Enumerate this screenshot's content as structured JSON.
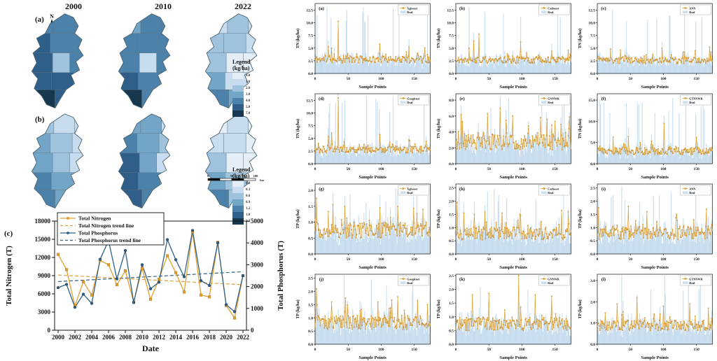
{
  "colors": {
    "orange": "#DFA032",
    "orange_edge": "#B97F1E",
    "blue": "#2E6186",
    "real_fill": "#CCE0F0",
    "real_edge": "#B5D2E8",
    "map_border": "#5c7384",
    "axis": "#111111"
  },
  "labels": {
    "panel_a": "(a)",
    "panel_b": "(b)",
    "panel_c": "(c)"
  },
  "maps": {
    "years": [
      "2000",
      "2010",
      "2022"
    ],
    "north_label": "N",
    "legend_title": "Legend",
    "legend_unit": "(kg/ha)",
    "ramp": [
      "#e4eef7",
      "#c7dcee",
      "#a0c3dd",
      "#73a5c7",
      "#4c82aa",
      "#2f5f88",
      "#17374f"
    ],
    "legend_a_values": [
      "0.0",
      "1.0",
      "2.0",
      "3.0",
      "4.0",
      "5.0",
      "7.0"
    ],
    "legend_b_values": [
      "0.0",
      "0.3",
      "0.6",
      "0.9",
      "1.2",
      "1.8",
      "2.3"
    ],
    "scalebar": {
      "ticks": [
        "0",
        "50",
        "100"
      ],
      "unit": "km"
    },
    "region_indices": {
      "a2000": [
        4,
        4,
        4,
        5,
        4,
        4,
        5,
        2,
        4,
        5,
        5,
        4,
        6,
        5,
        4
      ],
      "a2010": [
        3,
        4,
        4,
        4,
        4,
        4,
        4,
        1,
        4,
        5,
        4,
        3,
        6,
        4,
        3
      ],
      "a2022": [
        1,
        2,
        1,
        2,
        2,
        1,
        2,
        0,
        0,
        3,
        1,
        0,
        4,
        3,
        1
      ],
      "b2000": [
        2,
        1,
        1,
        3,
        2,
        1,
        3,
        2,
        1,
        4,
        3,
        2,
        4,
        3,
        2
      ],
      "b2010": [
        3,
        3,
        1,
        4,
        3,
        2,
        5,
        3,
        1,
        5,
        4,
        2,
        5,
        4,
        2
      ],
      "b2022": [
        0,
        1,
        0,
        1,
        1,
        0,
        2,
        0,
        0,
        3,
        2,
        1,
        4,
        2,
        1
      ]
    }
  },
  "chart_data": [
    {
      "id": "trend_chart",
      "type": "line",
      "label": "(c)",
      "xlabel": "Date",
      "ylabel_left": "Total Nitrogen (T)",
      "ylabel_right": "Total Phosphorus (T)",
      "ylim_left": [
        0,
        18000
      ],
      "yticks_left": [
        0,
        3000,
        6000,
        9000,
        12000,
        15000,
        18000
      ],
      "ylim_right": [
        0,
        5000
      ],
      "yticks_right": [
        0,
        1000,
        2000,
        3000,
        4000,
        5000
      ],
      "x": [
        2000,
        2001,
        2002,
        2003,
        2004,
        2005,
        2006,
        2007,
        2008,
        2009,
        2010,
        2011,
        2012,
        2013,
        2014,
        2015,
        2016,
        2017,
        2018,
        2019,
        2020,
        2021,
        2022
      ],
      "xticks": [
        2000,
        2002,
        2004,
        2006,
        2008,
        2010,
        2012,
        2014,
        2016,
        2018,
        2020,
        2022
      ],
      "legend_position": "upper left",
      "grid": false,
      "series": [
        {
          "name": "Total Nitrogen",
          "axis": "left",
          "style": "solid",
          "marker": "square",
          "values": [
            12500,
            10000,
            4000,
            8000,
            5800,
            11500,
            10800,
            7500,
            9800,
            4600,
            10200,
            5100,
            8400,
            12300,
            9500,
            6300,
            16200,
            5800,
            5500,
            14500,
            4100,
            2000,
            9000
          ]
        },
        {
          "name": "Total Nitrogen trend line",
          "axis": "left",
          "style": "dashed",
          "trend": [
            9100,
            7500
          ]
        },
        {
          "name": "Total Phosphorus",
          "axis": "right",
          "style": "solid",
          "marker": "circle",
          "values": [
            1950,
            2100,
            1050,
            1650,
            1230,
            3250,
            4100,
            2350,
            3650,
            1270,
            3000,
            1900,
            2200,
            4150,
            3230,
            2450,
            4570,
            2270,
            2050,
            4000,
            1170,
            850,
            2500
          ]
        },
        {
          "name": "Total Phosphorus trend line",
          "axis": "right",
          "style": "dashed",
          "trend": [
            2230,
            2680
          ]
        }
      ]
    },
    {
      "id": "model_panels",
      "type": "line",
      "note": "12 model-vs-real comparison panels; orange = model prediction line with markers, light blue bars = Real observed values; per-point values estimated via stated baseline/amplitude/spikes",
      "n_points": 175,
      "xlabel": "Sample Points",
      "xticks": [
        0,
        50,
        100,
        150
      ],
      "real_label": "Real",
      "panels": [
        {
          "label": "(a)",
          "model": "Xgboost",
          "ylabel": "TN (kg/ha)",
          "ymax": 13.8,
          "ytick_vals": [
            0,
            2.5,
            5,
            7.5,
            10,
            12.5
          ],
          "ytick_labels": [
            "0.0",
            "2.5",
            "5.0",
            "7.5",
            "10.0",
            "12.5"
          ],
          "base": 2.7,
          "amp": 1.4,
          "seed": 11,
          "spikes": [
            [
              20,
              5.3
            ],
            [
              25,
              5.0
            ],
            [
              35,
              10.3
            ],
            [
              98,
              5.8
            ],
            [
              142,
              5.2
            ],
            [
              166,
              5.0
            ]
          ]
        },
        {
          "label": "(b)",
          "model": "Catboost",
          "ylabel": "TN (kg/ha)",
          "ymax": 13.8,
          "ytick_vals": [
            0,
            2.5,
            5,
            7.5,
            10,
            12.5
          ],
          "ytick_labels": [
            "0.0",
            "2.5",
            "5.0",
            "7.5",
            "10.0",
            "12.5"
          ],
          "base": 2.6,
          "amp": 1.3,
          "seed": 22,
          "spikes": [
            [
              20,
              5.0
            ],
            [
              27,
              6.4
            ],
            [
              35,
              7.8
            ],
            [
              98,
              6.2
            ],
            [
              145,
              4.4
            ],
            [
              170,
              4.6
            ]
          ]
        },
        {
          "label": "(c)",
          "model": "ANN",
          "ylabel": "TN (kg/ha)",
          "ymax": 13.8,
          "ytick_vals": [
            0,
            2.5,
            5,
            7.5,
            10,
            12.5
          ],
          "ytick_labels": [
            "0.0",
            "2.5",
            "5.0",
            "7.5",
            "10.0",
            "12.5"
          ],
          "base": 2.5,
          "amp": 1.2,
          "seed": 33,
          "spikes": [
            [
              20,
              4.8
            ],
            [
              35,
              4.6
            ],
            [
              98,
              5.0
            ],
            [
              130,
              4.2
            ],
            [
              170,
              5.2
            ]
          ]
        },
        {
          "label": "(d)",
          "model": "Googlenet",
          "ylabel": "TN (kg/ha)",
          "ymax": 13.8,
          "ytick_vals": [
            0,
            2.5,
            5,
            7.5,
            10,
            12.5
          ],
          "ytick_labels": [
            "0.0",
            "2.5",
            "5.0",
            "7.5",
            "10.0",
            "12.5"
          ],
          "base": 2.7,
          "amp": 1.3,
          "seed": 44,
          "spikes": [
            [
              20,
              5.3
            ],
            [
              25,
              6.0
            ],
            [
              35,
              13.0
            ],
            [
              98,
              5.7
            ],
            [
              142,
              4.7
            ],
            [
              168,
              4.4
            ]
          ]
        },
        {
          "label": "(e)",
          "model": "GNNWR",
          "ylabel": "TN (kg/ha)",
          "ymax": 8.8,
          "ytick_vals": [
            0,
            2,
            4,
            6,
            8
          ],
          "ytick_labels": [
            "0.0",
            "2.0",
            "4.0",
            "6.0",
            "8.0"
          ],
          "base": 2.6,
          "amp": 1.9,
          "seed": 55,
          "spikes": [
            [
              8,
              6.2
            ],
            [
              48,
              6.3
            ],
            [
              67,
              7.0
            ],
            [
              86,
              6.0
            ],
            [
              128,
              5.8
            ],
            [
              138,
              5.6
            ],
            [
              172,
              5.9
            ]
          ]
        },
        {
          "label": "(f)",
          "model": "GTNNWR",
          "ylabel": "TN (kg/ha)",
          "ymax": 16.5,
          "ytick_vals": [
            0,
            5,
            10,
            15
          ],
          "ytick_labels": [
            "0.0",
            "5.0",
            "10.0",
            "15.0"
          ],
          "base": 2.9,
          "amp": 1.7,
          "seed": 66,
          "spikes": [
            [
              24,
              6.3
            ],
            [
              47,
              6.4
            ],
            [
              82,
              5.3
            ],
            [
              101,
              9.5
            ],
            [
              150,
              6.2
            ]
          ]
        },
        {
          "label": "(g)",
          "model": "Xgboost",
          "ylabel": "TP (kg/ha)",
          "ymax": 2.2,
          "ytick_vals": [
            0,
            0.5,
            1,
            1.5,
            2
          ],
          "ytick_labels": [
            "0.0",
            "0.5",
            "1.0",
            "1.5",
            "2.0"
          ],
          "base": 0.72,
          "amp": 0.5,
          "seed": 77,
          "spikes": [
            [
              2,
              1.75
            ],
            [
              27,
              1.55
            ],
            [
              45,
              1.5
            ],
            [
              98,
              1.45
            ],
            [
              125,
              1.5
            ],
            [
              163,
              1.4
            ]
          ]
        },
        {
          "label": "(h)",
          "model": "Catboost",
          "ylabel": "TP (kg/ha)",
          "ymax": 2.65,
          "ytick_vals": [
            0,
            0.5,
            1,
            1.5,
            2,
            2.5
          ],
          "ytick_labels": [
            "0.0",
            "0.5",
            "1.0",
            "1.5",
            "2.0",
            "2.5"
          ],
          "base": 0.75,
          "amp": 0.5,
          "seed": 88,
          "spikes": [
            [
              2,
              1.95
            ],
            [
              44,
              1.6
            ],
            [
              70,
              1.55
            ],
            [
              97,
              1.5
            ],
            [
              160,
              1.65
            ],
            [
              170,
              1.6
            ]
          ]
        },
        {
          "label": "(i)",
          "model": "ANN",
          "ylabel": "TP (kg/ha)",
          "ymax": 2.65,
          "ytick_vals": [
            0,
            0.5,
            1,
            1.5,
            2,
            2.5
          ],
          "ytick_labels": [
            "0.0",
            "0.5",
            "1.0",
            "1.5",
            "2.0",
            "2.5"
          ],
          "base": 0.78,
          "amp": 0.5,
          "seed": 99,
          "spikes": [
            [
              2,
              1.75
            ],
            [
              47,
              1.8
            ],
            [
              75,
              1.6
            ],
            [
              120,
              1.5
            ],
            [
              165,
              1.7
            ]
          ]
        },
        {
          "label": "(j)",
          "model": "Googlenet",
          "ylabel": "TP (kg/ha)",
          "ymax": 2.65,
          "ytick_vals": [
            0,
            0.5,
            1,
            1.5,
            2,
            2.5
          ],
          "ytick_labels": [
            "0.0",
            "0.5",
            "1.0",
            "1.5",
            "2.0",
            "2.5"
          ],
          "base": 0.8,
          "amp": 0.55,
          "seed": 110,
          "spikes": [
            [
              2,
              2.1
            ],
            [
              25,
              1.6
            ],
            [
              46,
              1.75
            ],
            [
              95,
              1.6
            ],
            [
              125,
              1.8
            ],
            [
              155,
              1.65
            ],
            [
              170,
              1.5
            ]
          ]
        },
        {
          "label": "(k)",
          "model": "GNNWR",
          "ylabel": "TP (kg/ha)",
          "ymax": 2.55,
          "ytick_vals": [
            0,
            0.5,
            1,
            1.5,
            2,
            2.5
          ],
          "ytick_labels": [
            "0.0",
            "0.5",
            "1.0",
            "1.5",
            "2.0",
            "2.5"
          ],
          "base": 0.72,
          "amp": 0.5,
          "seed": 121,
          "spikes": [
            [
              25,
              1.8
            ],
            [
              50,
              1.85
            ],
            [
              95,
              2.5
            ],
            [
              120,
              1.8
            ],
            [
              145,
              1.75
            ]
          ]
        },
        {
          "label": "(l)",
          "model": "GTNNWR",
          "ylabel": "TP (kg/ha)",
          "ymax": 3.3,
          "ytick_vals": [
            0,
            1,
            2,
            3
          ],
          "ytick_labels": [
            "0.0",
            "1.0",
            "2.0",
            "3.0"
          ],
          "base": 0.85,
          "amp": 0.5,
          "seed": 132,
          "spikes": [
            [
              30,
              1.9
            ],
            [
              60,
              2.2
            ],
            [
              100,
              1.8
            ],
            [
              140,
              1.9
            ],
            [
              168,
              1.7
            ]
          ]
        }
      ]
    }
  ]
}
